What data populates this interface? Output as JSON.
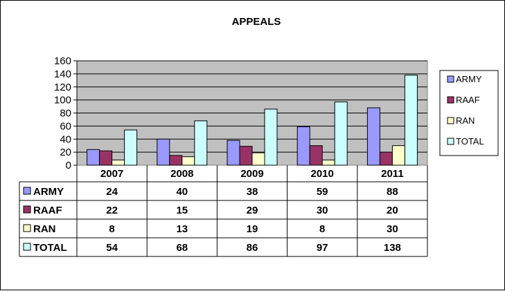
{
  "chart_data": {
    "type": "bar",
    "title": "APPEALS",
    "categories": [
      "2007",
      "2008",
      "2009",
      "2010",
      "2011"
    ],
    "series": [
      {
        "name": "ARMY",
        "values": [
          24,
          40,
          38,
          59,
          88
        ],
        "color": "#9999FF"
      },
      {
        "name": "RAAF",
        "values": [
          22,
          15,
          29,
          30,
          20
        ],
        "color": "#993366"
      },
      {
        "name": "RAN",
        "values": [
          8,
          13,
          19,
          8,
          30
        ],
        "color": "#FFFFCC"
      },
      {
        "name": "TOTAL",
        "values": [
          54,
          68,
          86,
          97,
          138
        ],
        "color": "#CCFFFF"
      }
    ],
    "yticks": [
      0,
      20,
      40,
      60,
      80,
      100,
      120,
      140,
      160
    ],
    "ylim": [
      0,
      160
    ],
    "grid": true,
    "plot_background": "#C0C0C0",
    "legend": "right",
    "data_table": true
  }
}
